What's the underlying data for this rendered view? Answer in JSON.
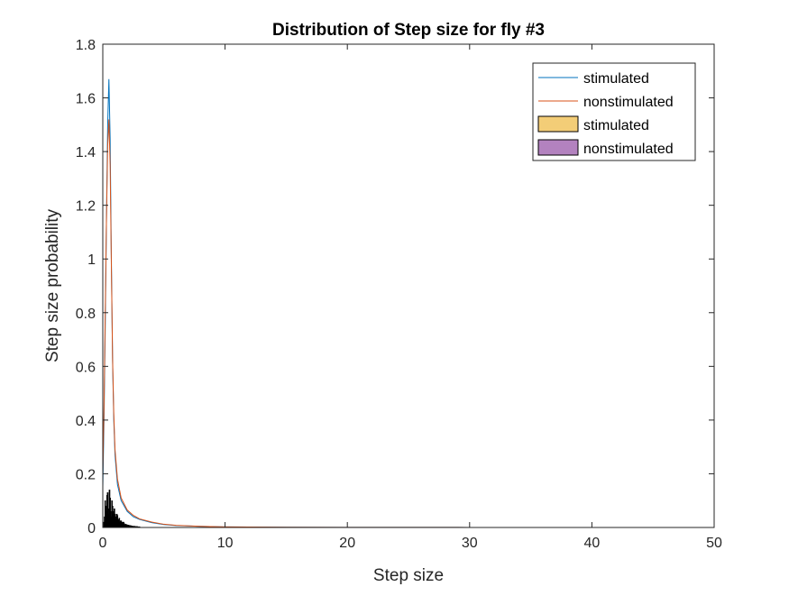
{
  "chart_data": {
    "type": "line",
    "title": "Distribution of Step size for fly #3",
    "xlabel": "Step size",
    "ylabel": "Step size probability",
    "xlim": [
      0,
      50
    ],
    "ylim": [
      0,
      1.8
    ],
    "xticks": [
      0,
      10,
      20,
      30,
      40,
      50
    ],
    "yticks": [
      0,
      0.2,
      0.4,
      0.6,
      0.8,
      1,
      1.2,
      1.4,
      1.6,
      1.8
    ],
    "xtick_labels": [
      "0",
      "10",
      "20",
      "30",
      "40",
      "50"
    ],
    "ytick_labels": [
      "0",
      "0.2",
      "0.4",
      "0.6",
      "0.8",
      "1",
      "1.2",
      "1.4",
      "1.6",
      "1.8"
    ],
    "grid": false,
    "legend_position": "top-right",
    "legend": [
      {
        "label": "stimulated",
        "kind": "line",
        "color": "#0072BD"
      },
      {
        "label": "nonstimulated",
        "kind": "line",
        "color": "#D95319"
      },
      {
        "label": "stimulated",
        "kind": "bar",
        "color": "#EDB120"
      },
      {
        "label": "nonstimulated",
        "kind": "bar",
        "color": "#7E2F8E"
      }
    ],
    "series": [
      {
        "kind": "line",
        "color": "#0072BD",
        "x": [
          0,
          0.1,
          0.2,
          0.3,
          0.4,
          0.5,
          0.6,
          0.7,
          0.8,
          0.9,
          1.0,
          1.2,
          1.5,
          2.0,
          2.5,
          3.0,
          4.0,
          5.0,
          6.0,
          8.0,
          10.0,
          15.0,
          20.0,
          30.0,
          50.0
        ],
        "y": [
          0.15,
          0.4,
          0.75,
          1.15,
          1.5,
          1.67,
          1.45,
          1.0,
          0.62,
          0.4,
          0.27,
          0.16,
          0.1,
          0.06,
          0.04,
          0.03,
          0.018,
          0.011,
          0.007,
          0.004,
          0.002,
          0.001,
          0.0005,
          0.0002,
          0.0
        ]
      },
      {
        "kind": "line",
        "color": "#D95319",
        "x": [
          0,
          0.1,
          0.2,
          0.3,
          0.4,
          0.5,
          0.6,
          0.7,
          0.8,
          0.9,
          1.0,
          1.2,
          1.5,
          2.0,
          2.5,
          3.0,
          4.0,
          5.0,
          6.0,
          8.0,
          10.0,
          15.0,
          20.0,
          30.0,
          50.0
        ],
        "y": [
          0.2,
          0.45,
          0.8,
          1.15,
          1.42,
          1.52,
          1.35,
          0.98,
          0.63,
          0.42,
          0.29,
          0.18,
          0.11,
          0.065,
          0.045,
          0.032,
          0.02,
          0.012,
          0.008,
          0.004,
          0.002,
          0.001,
          0.0005,
          0.0002,
          0.0
        ]
      },
      {
        "kind": "bar",
        "color": "#EDB120",
        "x": [
          0.1,
          0.2,
          0.3,
          0.4,
          0.5,
          0.6,
          0.7,
          0.8,
          0.9,
          1.0,
          1.1,
          1.2,
          1.3,
          1.4,
          1.5,
          1.6,
          1.7,
          1.8,
          1.9,
          2.0,
          2.2,
          2.4,
          2.6,
          2.8,
          3.0
        ],
        "y": [
          0.02,
          0.1,
          0.06,
          0.13,
          0.05,
          0.11,
          0.04,
          0.08,
          0.06,
          0.05,
          0.03,
          0.045,
          0.03,
          0.02,
          0.025,
          0.015,
          0.02,
          0.01,
          0.012,
          0.01,
          0.008,
          0.006,
          0.005,
          0.004,
          0.003
        ]
      },
      {
        "kind": "bar",
        "color": "#7E2F8E",
        "x": [
          0.15,
          0.25,
          0.35,
          0.45,
          0.55,
          0.65,
          0.75,
          0.85,
          0.95,
          1.05,
          1.15,
          1.25,
          1.35,
          1.45,
          1.55,
          1.65,
          1.75,
          1.85,
          1.95,
          2.1,
          2.3,
          2.5,
          2.7,
          2.9
        ],
        "y": [
          0.04,
          0.08,
          0.12,
          0.07,
          0.14,
          0.06,
          0.1,
          0.05,
          0.07,
          0.04,
          0.05,
          0.03,
          0.035,
          0.025,
          0.02,
          0.02,
          0.015,
          0.012,
          0.01,
          0.009,
          0.007,
          0.005,
          0.004,
          0.003
        ]
      }
    ]
  }
}
